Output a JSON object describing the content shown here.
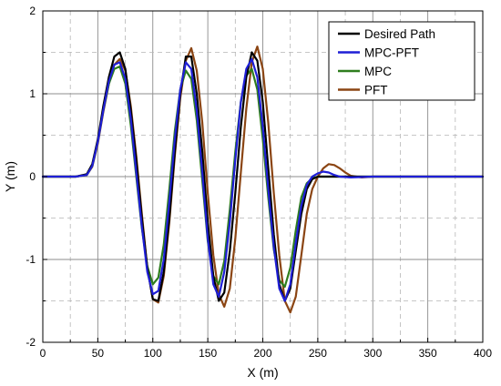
{
  "chart_data": {
    "type": "line",
    "title": "",
    "xlabel": "X (m)",
    "ylabel": "Y (m)",
    "xlim": [
      0,
      400
    ],
    "ylim": [
      -2,
      2
    ],
    "xticks": [
      "0",
      "50",
      "100",
      "150",
      "200",
      "250",
      "300",
      "350",
      "400"
    ],
    "yticks": [
      "-2",
      "-1",
      "0",
      "1",
      "2"
    ],
    "grid": true,
    "legend_position": "top-right",
    "series": [
      {
        "name": "Desired Path",
        "color": "#000000",
        "points": [
          [
            0,
            0
          ],
          [
            30,
            0
          ],
          [
            40,
            0.03
          ],
          [
            45,
            0.15
          ],
          [
            50,
            0.45
          ],
          [
            55,
            0.85
          ],
          [
            60,
            1.2
          ],
          [
            65,
            1.45
          ],
          [
            70,
            1.5
          ],
          [
            75,
            1.3
          ],
          [
            80,
            0.8
          ],
          [
            85,
            0.2
          ],
          [
            90,
            -0.5
          ],
          [
            95,
            -1.1
          ],
          [
            100,
            -1.48
          ],
          [
            105,
            -1.5
          ],
          [
            110,
            -1.15
          ],
          [
            115,
            -0.5
          ],
          [
            120,
            0.3
          ],
          [
            125,
            1.0
          ],
          [
            130,
            1.45
          ],
          [
            135,
            1.45
          ],
          [
            140,
            1.0
          ],
          [
            145,
            0.3
          ],
          [
            150,
            -0.55
          ],
          [
            155,
            -1.2
          ],
          [
            160,
            -1.5
          ],
          [
            165,
            -1.4
          ],
          [
            170,
            -0.9
          ],
          [
            175,
            -0.2
          ],
          [
            180,
            0.6
          ],
          [
            185,
            1.2
          ],
          [
            190,
            1.5
          ],
          [
            195,
            1.4
          ],
          [
            200,
            0.9
          ],
          [
            205,
            0.1
          ],
          [
            210,
            -0.7
          ],
          [
            215,
            -1.3
          ],
          [
            220,
            -1.5
          ],
          [
            225,
            -1.35
          ],
          [
            230,
            -0.9
          ],
          [
            235,
            -0.45
          ],
          [
            240,
            -0.15
          ],
          [
            245,
            -0.03
          ],
          [
            250,
            0
          ],
          [
            300,
            0
          ],
          [
            400,
            0
          ]
        ]
      },
      {
        "name": "MPC-PFT",
        "color": "#1f1fd6",
        "points": [
          [
            0,
            0
          ],
          [
            30,
            0
          ],
          [
            40,
            0.02
          ],
          [
            45,
            0.13
          ],
          [
            50,
            0.42
          ],
          [
            55,
            0.8
          ],
          [
            60,
            1.15
          ],
          [
            65,
            1.35
          ],
          [
            70,
            1.38
          ],
          [
            75,
            1.18
          ],
          [
            80,
            0.7
          ],
          [
            85,
            0.05
          ],
          [
            90,
            -0.6
          ],
          [
            95,
            -1.15
          ],
          [
            100,
            -1.42
          ],
          [
            105,
            -1.38
          ],
          [
            110,
            -1.0
          ],
          [
            115,
            -0.3
          ],
          [
            120,
            0.45
          ],
          [
            125,
            1.05
          ],
          [
            130,
            1.38
          ],
          [
            135,
            1.3
          ],
          [
            140,
            0.8
          ],
          [
            145,
            0.05
          ],
          [
            150,
            -0.75
          ],
          [
            155,
            -1.3
          ],
          [
            160,
            -1.45
          ],
          [
            165,
            -1.15
          ],
          [
            170,
            -0.55
          ],
          [
            175,
            0.2
          ],
          [
            180,
            0.9
          ],
          [
            185,
            1.3
          ],
          [
            190,
            1.42
          ],
          [
            195,
            1.2
          ],
          [
            200,
            0.6
          ],
          [
            205,
            -0.15
          ],
          [
            210,
            -0.85
          ],
          [
            215,
            -1.35
          ],
          [
            220,
            -1.5
          ],
          [
            225,
            -1.3
          ],
          [
            230,
            -0.8
          ],
          [
            235,
            -0.35
          ],
          [
            240,
            -0.1
          ],
          [
            245,
            0.0
          ],
          [
            250,
            0.04
          ],
          [
            255,
            0.06
          ],
          [
            260,
            0.05
          ],
          [
            265,
            0.02
          ],
          [
            270,
            0.0
          ],
          [
            280,
            -0.01
          ],
          [
            300,
            0
          ],
          [
            400,
            0
          ]
        ]
      },
      {
        "name": "MPC",
        "color": "#2e7d1e",
        "points": [
          [
            0,
            0
          ],
          [
            30,
            0
          ],
          [
            40,
            0.02
          ],
          [
            45,
            0.13
          ],
          [
            50,
            0.42
          ],
          [
            55,
            0.8
          ],
          [
            60,
            1.12
          ],
          [
            65,
            1.3
          ],
          [
            70,
            1.33
          ],
          [
            75,
            1.12
          ],
          [
            80,
            0.62
          ],
          [
            85,
            0.0
          ],
          [
            90,
            -0.62
          ],
          [
            95,
            -1.08
          ],
          [
            100,
            -1.3
          ],
          [
            105,
            -1.22
          ],
          [
            110,
            -0.82
          ],
          [
            115,
            -0.15
          ],
          [
            120,
            0.55
          ],
          [
            125,
            1.05
          ],
          [
            130,
            1.28
          ],
          [
            135,
            1.18
          ],
          [
            140,
            0.68
          ],
          [
            145,
            -0.05
          ],
          [
            150,
            -0.78
          ],
          [
            155,
            -1.2
          ],
          [
            160,
            -1.3
          ],
          [
            165,
            -1.02
          ],
          [
            170,
            -0.4
          ],
          [
            175,
            0.3
          ],
          [
            180,
            0.9
          ],
          [
            185,
            1.22
          ],
          [
            190,
            1.3
          ],
          [
            195,
            1.05
          ],
          [
            200,
            0.45
          ],
          [
            205,
            -0.25
          ],
          [
            210,
            -0.88
          ],
          [
            215,
            -1.25
          ],
          [
            220,
            -1.33
          ],
          [
            225,
            -1.1
          ],
          [
            230,
            -0.65
          ],
          [
            235,
            -0.25
          ],
          [
            240,
            -0.08
          ],
          [
            245,
            -0.02
          ],
          [
            250,
            0
          ],
          [
            300,
            0
          ],
          [
            400,
            0
          ]
        ]
      },
      {
        "name": "PFT",
        "color": "#8b4513",
        "points": [
          [
            0,
            0
          ],
          [
            30,
            0
          ],
          [
            40,
            0.02
          ],
          [
            45,
            0.12
          ],
          [
            50,
            0.4
          ],
          [
            55,
            0.78
          ],
          [
            60,
            1.12
          ],
          [
            65,
            1.35
          ],
          [
            70,
            1.42
          ],
          [
            75,
            1.28
          ],
          [
            80,
            0.85
          ],
          [
            85,
            0.25
          ],
          [
            90,
            -0.45
          ],
          [
            95,
            -1.1
          ],
          [
            100,
            -1.48
          ],
          [
            105,
            -1.52
          ],
          [
            110,
            -1.2
          ],
          [
            115,
            -0.55
          ],
          [
            120,
            0.25
          ],
          [
            125,
            0.95
          ],
          [
            130,
            1.4
          ],
          [
            135,
            1.55
          ],
          [
            140,
            1.28
          ],
          [
            145,
            0.65
          ],
          [
            150,
            -0.2
          ],
          [
            155,
            -0.95
          ],
          [
            160,
            -1.42
          ],
          [
            165,
            -1.57
          ],
          [
            170,
            -1.35
          ],
          [
            175,
            -0.75
          ],
          [
            180,
            0.05
          ],
          [
            185,
            0.82
          ],
          [
            190,
            1.38
          ],
          [
            195,
            1.57
          ],
          [
            200,
            1.3
          ],
          [
            205,
            0.65
          ],
          [
            210,
            -0.2
          ],
          [
            215,
            -0.95
          ],
          [
            220,
            -1.5
          ],
          [
            225,
            -1.64
          ],
          [
            230,
            -1.45
          ],
          [
            235,
            -0.95
          ],
          [
            240,
            -0.45
          ],
          [
            245,
            -0.15
          ],
          [
            250,
            0.0
          ],
          [
            255,
            0.1
          ],
          [
            260,
            0.15
          ],
          [
            265,
            0.14
          ],
          [
            270,
            0.1
          ],
          [
            275,
            0.05
          ],
          [
            280,
            0.01
          ],
          [
            290,
            -0.01
          ],
          [
            300,
            0
          ],
          [
            400,
            0
          ]
        ]
      }
    ]
  }
}
